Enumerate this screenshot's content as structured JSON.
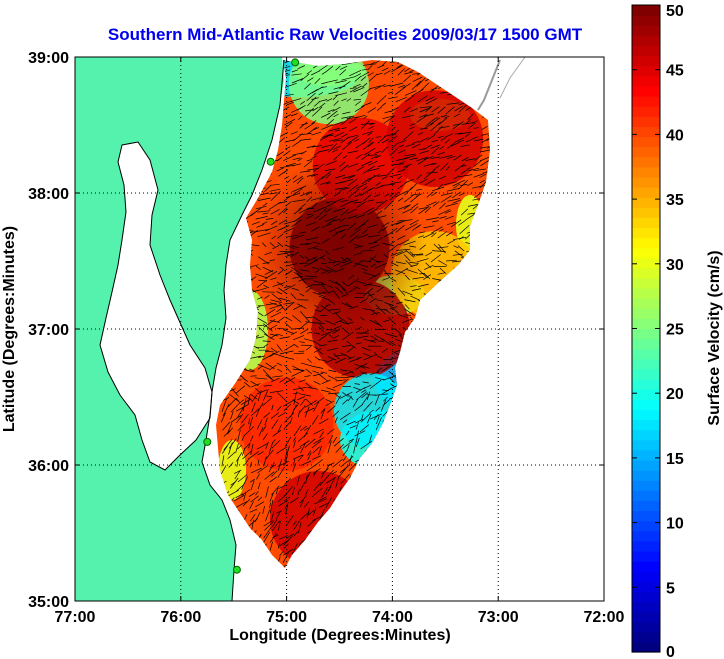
{
  "chart_data": {
    "type": "heatmap",
    "title": "Southern Mid-Atlantic Raw Velocities 2009/03/17 1500 GMT",
    "xlabel": "Longitude (Degrees:Minutes)",
    "ylabel": "Latitude (Degrees:Minutes)",
    "colorbar_label": "Surface Velocity (cm/s)",
    "xlim": [
      -77,
      -72
    ],
    "ylim": [
      35,
      39
    ],
    "x_ticks": [
      {
        "value": -77,
        "label": "77:00"
      },
      {
        "value": -76,
        "label": "76:00"
      },
      {
        "value": -75,
        "label": "75:00"
      },
      {
        "value": -74,
        "label": "74:00"
      },
      {
        "value": -73,
        "label": "73:00"
      },
      {
        "value": -72,
        "label": "72:00"
      }
    ],
    "y_ticks": [
      {
        "value": 39,
        "label": "39:00"
      },
      {
        "value": 38,
        "label": "38:00"
      },
      {
        "value": 37,
        "label": "37:00"
      },
      {
        "value": 36,
        "label": "36:00"
      },
      {
        "value": 35,
        "label": "35:00"
      }
    ],
    "colorbar": {
      "min": 0,
      "max": 50,
      "ticks": [
        {
          "value": 50,
          "label": "50"
        },
        {
          "value": 45,
          "label": "45"
        },
        {
          "value": 40,
          "label": "40"
        },
        {
          "value": 35,
          "label": "35"
        },
        {
          "value": 30,
          "label": "30"
        },
        {
          "value": 25,
          "label": "25"
        },
        {
          "value": 20,
          "label": "20"
        },
        {
          "value": 15,
          "label": "15"
        },
        {
          "value": 10,
          "label": "10"
        },
        {
          "value": 5,
          "label": "5"
        },
        {
          "value": 0,
          "label": "0"
        }
      ],
      "colormap": "jet"
    },
    "grid": "dotted",
    "land_color": "#55f2ae",
    "velocity_hotspots": [
      {
        "lon": -74.5,
        "lat": 37.6,
        "speed": 50
      },
      {
        "lon": -74.3,
        "lat": 38.2,
        "speed": 45
      },
      {
        "lon": -73.6,
        "lat": 38.4,
        "speed": 46
      },
      {
        "lon": -74.3,
        "lat": 37.0,
        "speed": 48
      },
      {
        "lon": -75.0,
        "lat": 36.3,
        "speed": 42
      },
      {
        "lon": -74.7,
        "lat": 35.6,
        "speed": 46
      },
      {
        "lon": -74.2,
        "lat": 36.4,
        "speed": 18
      },
      {
        "lon": -74.6,
        "lat": 38.8,
        "speed": 25
      },
      {
        "lon": -73.6,
        "lat": 37.4,
        "speed": 34
      }
    ],
    "stations": [
      {
        "lon": -74.92,
        "lat": 38.96
      },
      {
        "lon": -75.15,
        "lat": 38.23
      },
      {
        "lon": -75.75,
        "lat": 36.17
      },
      {
        "lon": -75.47,
        "lat": 35.23
      }
    ]
  }
}
